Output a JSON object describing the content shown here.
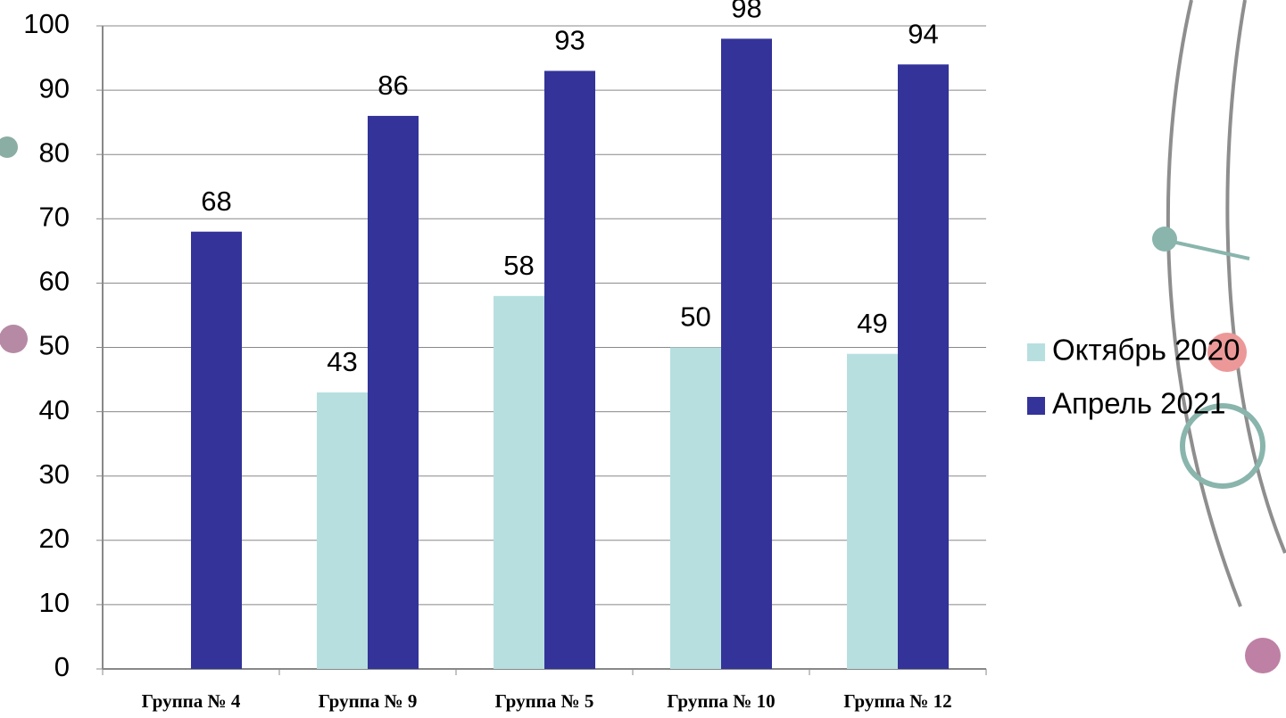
{
  "chart_data": {
    "type": "bar",
    "categories": [
      "Группа № 4",
      "Группа № 9",
      "Группа № 5",
      "Группа № 10",
      "Группа № 12"
    ],
    "series": [
      {
        "name": "Октябрь 2020",
        "color": "#b7dfe0",
        "values": [
          null,
          43,
          58,
          50,
          49
        ]
      },
      {
        "name": "Апрель 2021",
        "color": "#333399",
        "values": [
          68,
          86,
          93,
          98,
          94
        ]
      }
    ],
    "ylim": [
      0,
      100
    ],
    "yticks": [
      0,
      10,
      20,
      30,
      40,
      50,
      60,
      70,
      80,
      90,
      100
    ],
    "grid": true,
    "legend": "right"
  }
}
